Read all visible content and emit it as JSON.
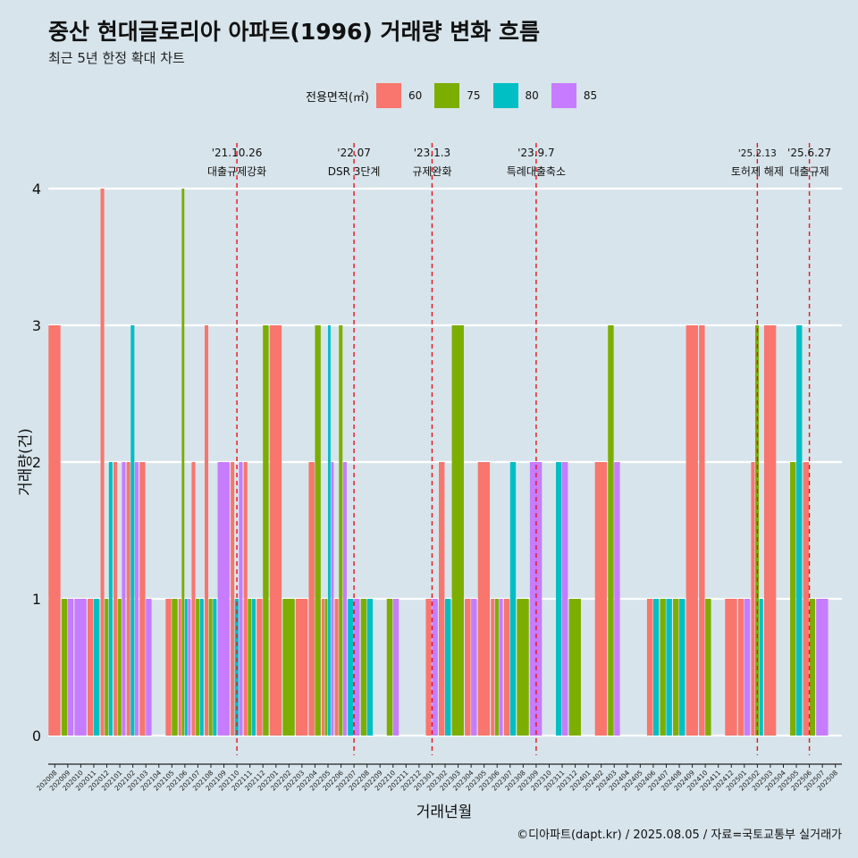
{
  "title": "중산 현대글로리아 아파트(1996) 거래량 변화 흐름",
  "subtitle": "최근 5년 한정 확대 차트",
  "caption": "©디아파트(dapt.kr) / 2025.08.05 / 자료=국토교통부 실거래가",
  "legend": {
    "title": "전용면적(㎡)",
    "items": [
      {
        "label": "60",
        "color": "#f8766d"
      },
      {
        "label": "75",
        "color": "#7cae00"
      },
      {
        "label": "80",
        "color": "#00bfc4"
      },
      {
        "label": "85",
        "color": "#c77cff"
      }
    ]
  },
  "chart_data": {
    "type": "bar",
    "xlabel": "거래년월",
    "ylabel": "거래량(건)",
    "ylim": [
      0,
      4
    ],
    "yticks": [
      0,
      1,
      2,
      3,
      4
    ],
    "grid": true,
    "legend_position": "top",
    "categories": [
      "202008",
      "202009",
      "202010",
      "202011",
      "202012",
      "202101",
      "202102",
      "202103",
      "202104",
      "202105",
      "202106",
      "202107",
      "202108",
      "202109",
      "202110",
      "202111",
      "202112",
      "202201",
      "202202",
      "202203",
      "202204",
      "202205",
      "202206",
      "202207",
      "202208",
      "202209",
      "202210",
      "202211",
      "202212",
      "202301",
      "202302",
      "202303",
      "202304",
      "202305",
      "202306",
      "202307",
      "202308",
      "202309",
      "202310",
      "202311",
      "202312",
      "202401",
      "202402",
      "202403",
      "202404",
      "202405",
      "202406",
      "202407",
      "202408",
      "202409",
      "202410",
      "202411",
      "202412",
      "202501",
      "202502",
      "202503",
      "202504",
      "202505",
      "202506",
      "202507",
      "202508"
    ],
    "series": [
      {
        "name": "60",
        "points": [
          [
            "202008",
            3
          ],
          [
            "202011",
            1
          ],
          [
            "202012",
            4
          ],
          [
            "202101",
            2
          ],
          [
            "202102",
            2
          ],
          [
            "202103",
            2
          ],
          [
            "202105",
            1
          ],
          [
            "202106",
            1
          ],
          [
            "202107",
            2
          ],
          [
            "202108",
            3
          ],
          [
            "202110",
            2
          ],
          [
            "202111",
            2
          ],
          [
            "202112",
            1
          ],
          [
            "202201",
            3
          ],
          [
            "202203",
            1
          ],
          [
            "202204",
            2
          ],
          [
            "202205",
            1
          ],
          [
            "202206",
            1
          ],
          [
            "202301",
            1
          ],
          [
            "202302",
            2
          ],
          [
            "202304",
            1
          ],
          [
            "202305",
            2
          ],
          [
            "202306",
            1
          ],
          [
            "202307",
            1
          ],
          [
            "202402",
            2
          ],
          [
            "202406",
            1
          ],
          [
            "202409",
            3
          ],
          [
            "202410",
            3
          ],
          [
            "202412",
            1
          ],
          [
            "202501",
            1
          ],
          [
            "202502",
            2
          ],
          [
            "202503",
            3
          ],
          [
            "202506",
            2
          ]
        ]
      },
      {
        "name": "75",
        "points": [
          [
            "202009",
            1
          ],
          [
            "202012",
            1
          ],
          [
            "202101",
            1
          ],
          [
            "202105",
            1
          ],
          [
            "202106",
            4
          ],
          [
            "202107",
            1
          ],
          [
            "202108",
            1
          ],
          [
            "202111",
            1
          ],
          [
            "202112",
            3
          ],
          [
            "202202",
            1
          ],
          [
            "202204",
            3
          ],
          [
            "202205",
            1
          ],
          [
            "202206",
            3
          ],
          [
            "202208",
            1
          ],
          [
            "202210",
            1
          ],
          [
            "202303",
            3
          ],
          [
            "202306",
            1
          ],
          [
            "202308",
            1
          ],
          [
            "202312",
            1
          ],
          [
            "202403",
            3
          ],
          [
            "202407",
            1
          ],
          [
            "202408",
            1
          ],
          [
            "202410",
            1
          ],
          [
            "202502",
            3
          ],
          [
            "202505",
            2
          ],
          [
            "202506",
            1
          ]
        ]
      },
      {
        "name": "80",
        "points": [
          [
            "202011",
            1
          ],
          [
            "202012",
            2
          ],
          [
            "202102",
            3
          ],
          [
            "202106",
            1
          ],
          [
            "202107",
            1
          ],
          [
            "202108",
            1
          ],
          [
            "202110",
            1
          ],
          [
            "202111",
            1
          ],
          [
            "202205",
            3
          ],
          [
            "202207",
            1
          ],
          [
            "202208",
            1
          ],
          [
            "202302",
            1
          ],
          [
            "202307",
            2
          ],
          [
            "202311",
            2
          ],
          [
            "202406",
            1
          ],
          [
            "202407",
            1
          ],
          [
            "202408",
            1
          ],
          [
            "202502",
            1
          ],
          [
            "202505",
            3
          ]
        ]
      },
      {
        "name": "85",
        "points": [
          [
            "202009",
            1
          ],
          [
            "202010",
            1
          ],
          [
            "202101",
            2
          ],
          [
            "202102",
            2
          ],
          [
            "202103",
            1
          ],
          [
            "202106",
            1
          ],
          [
            "202109",
            2
          ],
          [
            "202110",
            2
          ],
          [
            "202205",
            2
          ],
          [
            "202206",
            2
          ],
          [
            "202207",
            1
          ],
          [
            "202210",
            1
          ],
          [
            "202301",
            1
          ],
          [
            "202304",
            1
          ],
          [
            "202306",
            1
          ],
          [
            "202309",
            2
          ],
          [
            "202311",
            2
          ],
          [
            "202403",
            2
          ],
          [
            "202501",
            1
          ],
          [
            "202507",
            1
          ]
        ]
      }
    ],
    "events": [
      {
        "date": "'21.10.26",
        "label": "대출규제강화",
        "x": "202110"
      },
      {
        "date": "'22.07",
        "label": "DSR 3단계",
        "x": "202207"
      },
      {
        "date": "'23.1.3",
        "label": "규제완화",
        "x": "202301"
      },
      {
        "date": "'23.9.7",
        "label": "특례대출축소",
        "x": "202309"
      },
      {
        "date": "'25.2.13",
        "label": "토허제 해제",
        "x": "202502"
      },
      {
        "date": "'25.6.27",
        "label": "대출규제",
        "x": "202506"
      }
    ]
  }
}
